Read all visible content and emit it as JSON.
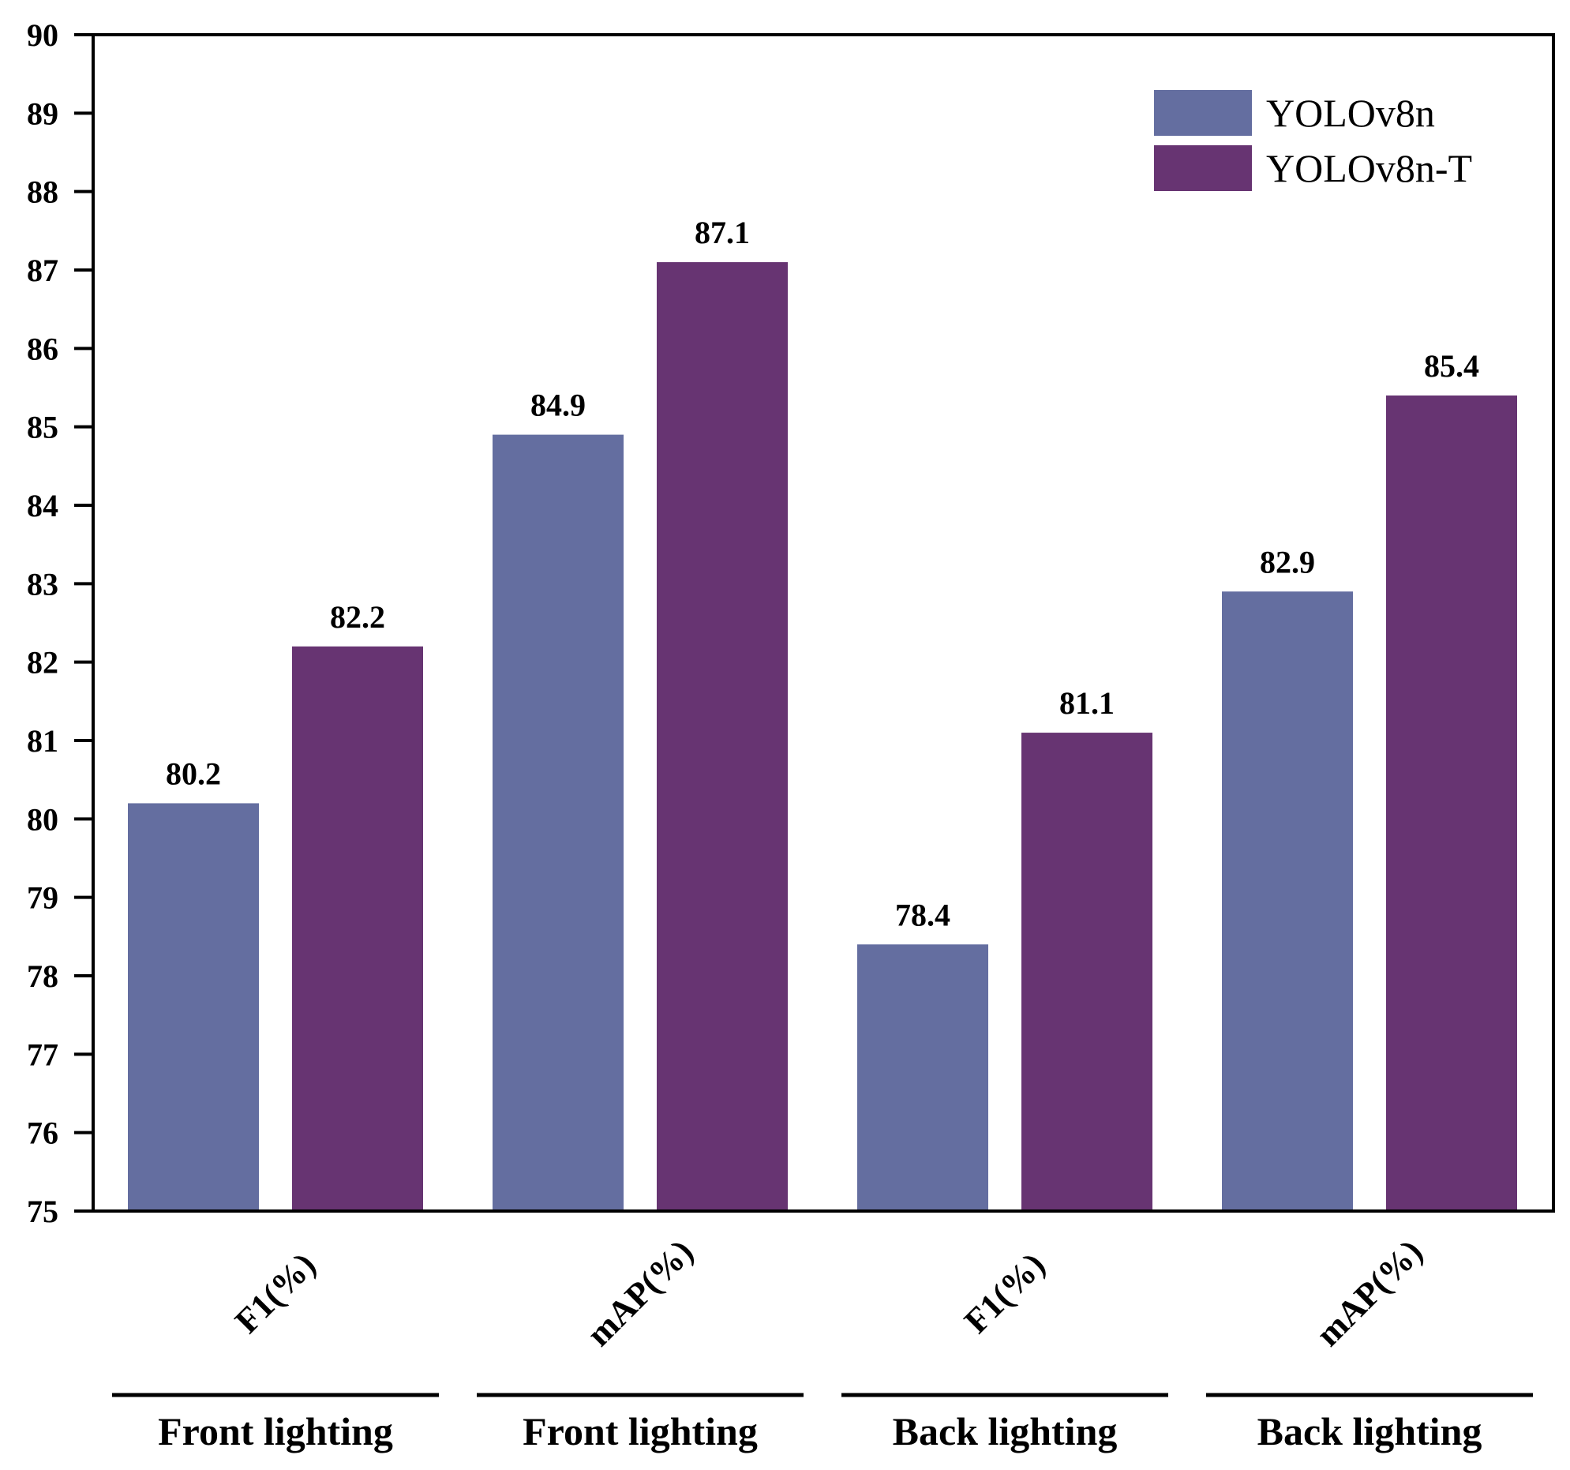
{
  "chart_data": {
    "type": "bar",
    "categories": [
      "F1(%)",
      "mAP(%)",
      "F1(%)",
      "mAP(%)"
    ],
    "groups": [
      "Front lighting",
      "Front lighting",
      "Back lighting",
      "Back lighting"
    ],
    "series": [
      {
        "name": "YOLOv8n",
        "values": [
          80.2,
          84.9,
          78.4,
          82.9
        ],
        "color": "#646ea0"
      },
      {
        "name": "YOLOv8n-T",
        "values": [
          82.2,
          87.1,
          81.1,
          85.4
        ],
        "color": "#673472"
      }
    ],
    "value_labels": [
      [
        "80.2",
        "84.9",
        "78.4",
        "82.9"
      ],
      [
        "82.2",
        "87.1",
        "81.1",
        "85.4"
      ]
    ],
    "ylim": [
      75,
      90
    ],
    "yticks": [
      "75",
      "76",
      "77",
      "78",
      "79",
      "80",
      "81",
      "82",
      "83",
      "84",
      "85",
      "86",
      "87",
      "88",
      "89",
      "90"
    ],
    "legend_position": "top-right",
    "title": "",
    "xlabel": "",
    "ylabel": ""
  }
}
